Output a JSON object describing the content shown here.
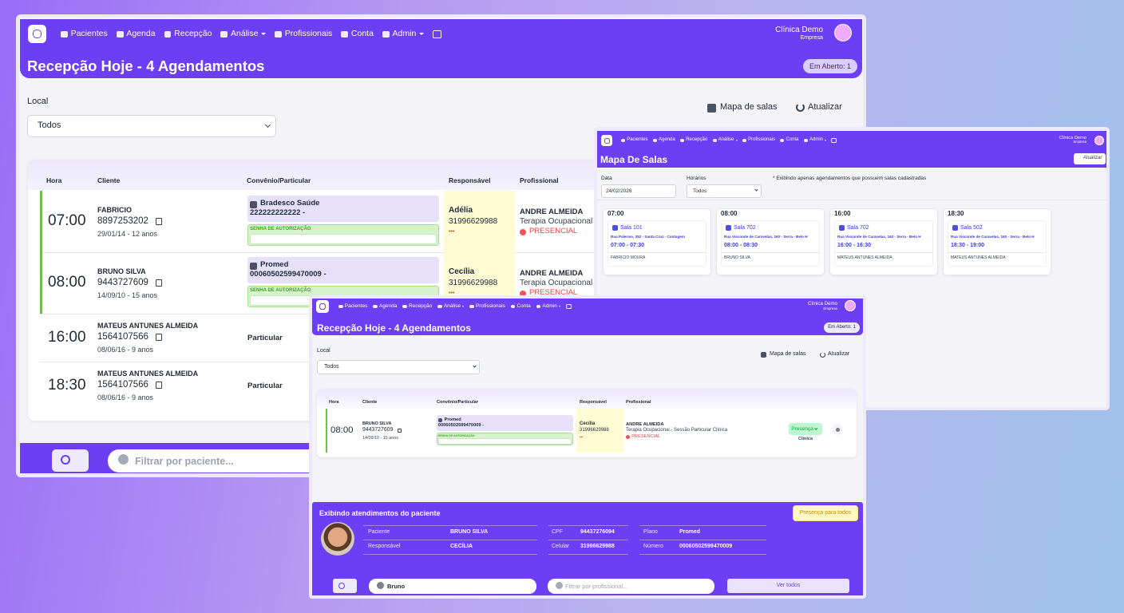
{
  "nav": {
    "items": [
      "Pacientes",
      "Agenda",
      "Recepção",
      "Análise",
      "Profissionais",
      "Conta",
      "Admin"
    ],
    "clinic": "Clínica Demo",
    "role": "Empresa"
  },
  "main": {
    "title": "Recepção Hoje - 4 Agendamentos",
    "badge": "Em Aberto: 1",
    "local_label": "Local",
    "local_value": "Todos",
    "map_button": "Mapa de salas",
    "refresh_button": "Atualizar",
    "headers": [
      "Hora",
      "Cliente",
      "Convênio/Particular",
      "Responsável",
      "Profissional"
    ],
    "rows": [
      {
        "time": "07:00",
        "name": "FABRICIO",
        "code": "8897253202",
        "birth": "29/01/14 - 12 anos",
        "plan": "Bradesco Saúde",
        "plan_number": "222222222222 -",
        "auth_label": "SENHA DE AUTORIZAÇÃO",
        "responsible": "Adélia",
        "phone": "31996629988",
        "dots": "•••",
        "professional": "ANDRE ALMEIDA",
        "service": "Terapia Ocupacional - S",
        "mode": "PRESENCIAL"
      },
      {
        "time": "08:00",
        "name": "BRUNO SILVA",
        "code": "9443727609",
        "birth": "14/09/10 - 15 anos",
        "plan": "Promed",
        "plan_number": "00060502599470009 -",
        "auth_label": "SENHA DE AUTORIZAÇÃO",
        "responsible": "Cecília",
        "phone": "31996629988",
        "dots": "•••",
        "professional": "ANDRE ALMEIDA",
        "service": "Terapia Ocupacional - S",
        "mode": "PRESENCIAL"
      },
      {
        "time": "16:00",
        "name": "MATEUS ANTUNES ALMEIDA",
        "code": "1564107566",
        "birth": "08/06/16 - 9 anos",
        "plan": "Particular"
      },
      {
        "time": "18:30",
        "name": "MATEUS ANTUNES ALMEIDA",
        "code": "1564107566",
        "birth": "08/06/16 - 9 anos",
        "plan": "Particular"
      }
    ],
    "filter_placeholder": "Filtrar por paciente..."
  },
  "rooms": {
    "title": "Mapa De Salas",
    "refresh_button": "Atualizar",
    "date_label": "Data",
    "date_value": "24/02/2026",
    "hours_label": "Horários",
    "hours_value": "Todos",
    "note": "* Exibindo apenas agendamentos que possuem salas cadastradas",
    "cards": [
      {
        "time": "07:00",
        "room": "Sala 101",
        "address": "Rua Palermo, 352 - Santa Cruz - Contagem",
        "range": "07:00 - 07:30",
        "patient": "FABRICIO MOURA"
      },
      {
        "time": "08:00",
        "room": "Sala 702",
        "address": "Rua Visconde de Caravelas, 160 - Serra - Belo H",
        "range": "08:00 - 08:30",
        "patient": "BRUNO SILVA"
      },
      {
        "time": "16:00",
        "room": "Sala 702",
        "address": "Rua Visconde de Caravelas, 160 - Serra - Belo H",
        "range": "16:00 - 16:30",
        "patient": "MATEUS ANTUNES ALMEIDA"
      },
      {
        "time": "18:30",
        "room": "Sala 502",
        "address": "Rua Visconde de Caravelas, 160 - Serra - Belo H",
        "range": "18:30 - 19:00",
        "patient": "MATEUS ANTUNES ALMEIDA"
      }
    ]
  },
  "front": {
    "rows": [
      {
        "time": "08:00",
        "name": "BRUNO SILVA",
        "code": "9443727609",
        "birth": "14/09/10 - 15 anos",
        "plan": "Promed",
        "plan_number": "00060502599470009 -",
        "auth_label": "SENHA DE AUTORIZAÇÃO",
        "responsible": "Cecília",
        "phone": "31996629988",
        "dots": "•••",
        "professional": "ANDRE ALMEIDA",
        "service": "Terapia Ocupacional - Sessão Particular Clínica",
        "mode": "PRESENCIAL",
        "status": "Presença",
        "location": "Clínica"
      }
    ],
    "patient_panel": {
      "title": "Exibindo atendimentos do paciente",
      "all_button": "Presença para todos",
      "fields": [
        {
          "label": "Paciente",
          "value": "BRUNO SILVA"
        },
        {
          "label": "Responsável",
          "value": "CECÍLIA"
        },
        {
          "label": "CPF",
          "value": "94437276094"
        },
        {
          "label": "Celular",
          "value": "31996629988"
        },
        {
          "label": "Plano",
          "value": "Promed"
        },
        {
          "label": "Número",
          "value": "00060502599470009"
        }
      ]
    },
    "search_value": "Bruno",
    "professional_placeholder": "Filtrar por profissional...",
    "view_all": "Ver todos"
  }
}
